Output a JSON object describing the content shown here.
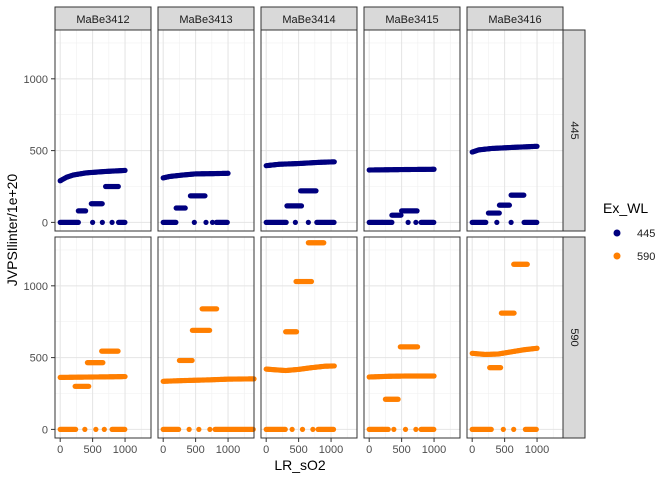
{
  "chart_data": {
    "type": "scatter",
    "title": "",
    "xlabel": "LR_sO2",
    "ylabel": "JVPSIlinter/1e+20",
    "xlim": [
      -80,
      1400
    ],
    "ylim": [
      -60,
      1340
    ],
    "x_ticks": [
      0,
      500,
      1000
    ],
    "y_ticks": [
      0,
      500,
      1000
    ],
    "grid": true,
    "legend_position": "right",
    "legend": {
      "title": "Ex_WL",
      "entries": [
        {
          "label": "445",
          "color": "#00007F"
        },
        {
          "label": "590",
          "color": "#FF7F00"
        }
      ]
    },
    "col_facets": [
      "MaBe3412",
      "MaBe3413",
      "MaBe3414",
      "MaBe3415",
      "MaBe3416"
    ],
    "row_facets": [
      "445",
      "590"
    ],
    "series": [
      {
        "wl": "445",
        "sample": "MaBe3412",
        "curve": [
          [
            0,
            290
          ],
          [
            100,
            315
          ],
          [
            200,
            330
          ],
          [
            400,
            345
          ],
          [
            700,
            355
          ],
          [
            1000,
            362
          ]
        ],
        "segments": [
          [
            0,
            280,
            0
          ],
          [
            280,
            400,
            80
          ],
          [
            480,
            650,
            130
          ],
          [
            700,
            900,
            250
          ],
          [
            900,
            1000,
            0
          ]
        ],
        "dots": [
          [
            500,
            0
          ],
          [
            650,
            0
          ],
          [
            800,
            0
          ]
        ]
      },
      {
        "wl": "445",
        "sample": "MaBe3413",
        "curve": [
          [
            0,
            310
          ],
          [
            100,
            320
          ],
          [
            300,
            330
          ],
          [
            500,
            338
          ],
          [
            800,
            340
          ],
          [
            1000,
            342
          ]
        ],
        "segments": [
          [
            0,
            200,
            0
          ],
          [
            200,
            350,
            100
          ],
          [
            420,
            650,
            185
          ],
          [
            820,
            1000,
            0
          ]
        ],
        "dots": [
          [
            480,
            0
          ],
          [
            660,
            0
          ],
          [
            760,
            0
          ]
        ]
      },
      {
        "wl": "445",
        "sample": "MaBe3414",
        "curve": [
          [
            0,
            395
          ],
          [
            200,
            405
          ],
          [
            500,
            410
          ],
          [
            800,
            418
          ],
          [
            1050,
            422
          ]
        ],
        "segments": [
          [
            0,
            320,
            0
          ],
          [
            320,
            550,
            115
          ],
          [
            530,
            780,
            220
          ],
          [
            780,
            1050,
            0
          ]
        ],
        "dots": [
          [
            450,
            0
          ],
          [
            650,
            0
          ]
        ]
      },
      {
        "wl": "445",
        "sample": "MaBe3415",
        "curve": [
          [
            0,
            365
          ],
          [
            500,
            368
          ],
          [
            1000,
            370
          ]
        ],
        "segments": [
          [
            0,
            350,
            0
          ],
          [
            350,
            500,
            50
          ],
          [
            500,
            750,
            80
          ],
          [
            800,
            1000,
            0
          ]
        ],
        "dots": [
          [
            600,
            0
          ],
          [
            720,
            0
          ]
        ]
      },
      {
        "wl": "445",
        "sample": "MaBe3416",
        "curve": [
          [
            0,
            490
          ],
          [
            100,
            505
          ],
          [
            300,
            515
          ],
          [
            600,
            522
          ],
          [
            1000,
            530
          ]
        ],
        "segments": [
          [
            0,
            220,
            0
          ],
          [
            250,
            420,
            65
          ],
          [
            420,
            580,
            120
          ],
          [
            600,
            800,
            190
          ],
          [
            800,
            1000,
            0
          ]
        ],
        "dots": [
          [
            380,
            0
          ],
          [
            600,
            0
          ]
        ]
      },
      {
        "wl": "590",
        "sample": "MaBe3412",
        "curve": [
          [
            0,
            362
          ],
          [
            300,
            364
          ],
          [
            700,
            366
          ],
          [
            1000,
            368
          ]
        ],
        "segments": [
          [
            0,
            250,
            0
          ],
          [
            230,
            450,
            300
          ],
          [
            420,
            660,
            465
          ],
          [
            640,
            900,
            545
          ],
          [
            800,
            1000,
            0
          ]
        ],
        "dots": [
          [
            380,
            0
          ],
          [
            550,
            0
          ],
          [
            680,
            0
          ]
        ]
      },
      {
        "wl": "590",
        "sample": "MaBe3413",
        "curve": [
          [
            0,
            335
          ],
          [
            300,
            340
          ],
          [
            700,
            345
          ],
          [
            1000,
            350
          ],
          [
            1400,
            352
          ]
        ],
        "segments": [
          [
            0,
            250,
            0
          ],
          [
            250,
            450,
            480
          ],
          [
            450,
            720,
            690
          ],
          [
            600,
            830,
            840
          ],
          [
            800,
            1400,
            0
          ]
        ],
        "dots": [
          [
            400,
            0
          ],
          [
            550,
            0
          ],
          [
            720,
            0
          ]
        ]
      },
      {
        "wl": "590",
        "sample": "MaBe3414",
        "curve": [
          [
            0,
            420
          ],
          [
            150,
            415
          ],
          [
            300,
            410
          ],
          [
            500,
            418
          ],
          [
            700,
            430
          ],
          [
            900,
            440
          ],
          [
            1050,
            442
          ]
        ],
        "segments": [
          [
            0,
            300,
            0
          ],
          [
            300,
            480,
            680
          ],
          [
            460,
            700,
            1030
          ],
          [
            650,
            900,
            1300
          ],
          [
            800,
            1050,
            0
          ]
        ],
        "dots": [
          [
            400,
            0
          ],
          [
            560,
            0
          ],
          [
            720,
            0
          ]
        ]
      },
      {
        "wl": "590",
        "sample": "MaBe3415",
        "curve": [
          [
            0,
            365
          ],
          [
            300,
            370
          ],
          [
            600,
            372
          ],
          [
            1000,
            372
          ]
        ],
        "segments": [
          [
            0,
            300,
            0
          ],
          [
            250,
            450,
            210
          ],
          [
            480,
            750,
            575
          ],
          [
            800,
            1000,
            0
          ]
        ],
        "dots": [
          [
            380,
            0
          ],
          [
            560,
            0
          ],
          [
            720,
            0
          ]
        ]
      },
      {
        "wl": "590",
        "sample": "MaBe3416",
        "curve": [
          [
            0,
            530
          ],
          [
            200,
            522
          ],
          [
            400,
            525
          ],
          [
            600,
            540
          ],
          [
            800,
            555
          ],
          [
            1000,
            565
          ]
        ],
        "segments": [
          [
            0,
            300,
            0
          ],
          [
            270,
            450,
            430
          ],
          [
            450,
            650,
            810
          ],
          [
            640,
            860,
            1150
          ],
          [
            820,
            1000,
            0
          ]
        ],
        "dots": [
          [
            480,
            0
          ],
          [
            640,
            0
          ]
        ]
      }
    ]
  }
}
